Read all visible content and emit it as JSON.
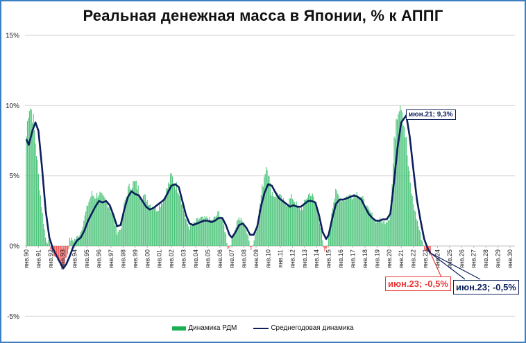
{
  "title": "Реальная денежная масса в Японии, % к АППГ",
  "colors": {
    "bar_positive": "#4cc47a",
    "bar_negative": "#f25a5a",
    "line": "#0d1f5c",
    "grid": "#d9d9d9",
    "frame": "#3a7fc4",
    "callout_red": "#e83a3a"
  },
  "legend": {
    "bars_label": "Динамика РДМ",
    "line_label": "Среднегодовая динамика"
  },
  "callouts": {
    "peak": "июн.21; 9,3%",
    "bar_last": "июн.23; -0,5%",
    "line_last": "июн.23; -0,5%"
  },
  "chart_data": {
    "type": "bar+line",
    "title": "Реальная денежная масса в Японии, % к АППГ",
    "xlabel": "",
    "ylabel": "",
    "ylim": [
      -5,
      15
    ],
    "yticks": [
      "15%",
      "10%",
      "5%",
      "0%",
      "-5%"
    ],
    "ytick_values": [
      15,
      10,
      5,
      0,
      -5
    ],
    "grid": true,
    "legend_position": "bottom",
    "categories": [
      "янв.90",
      "янв.91",
      "янв.92",
      "янв.93",
      "янв.94",
      "янв.95",
      "янв.96",
      "янв.97",
      "янв.98",
      "янв.99",
      "янв.00",
      "янв.01",
      "янв.02",
      "янв.03",
      "янв.04",
      "янв.05",
      "янв.06",
      "янв.07",
      "янв.08",
      "янв.09",
      "янв.10",
      "янв.11",
      "янв.12",
      "янв.13",
      "янв.14",
      "янв.15",
      "янв.16",
      "янв.17",
      "янв.18",
      "янв.19",
      "янв.20",
      "янв.21",
      "янв.22",
      "янв.23",
      "янв.24",
      "янв.25",
      "янв.26",
      "янв.27",
      "янв.28",
      "янв.29",
      "янв.30"
    ],
    "series": [
      {
        "name": "Динамика РДМ",
        "type": "bar",
        "frequency": "monthly (anchor points, decimal year → %)",
        "points": [
          [
            1990.0,
            7.8
          ],
          [
            1990.2,
            10.2
          ],
          [
            1990.5,
            9.5
          ],
          [
            1990.8,
            7.0
          ],
          [
            1991.0,
            5.0
          ],
          [
            1991.3,
            2.5
          ],
          [
            1991.6,
            0.5
          ],
          [
            1991.9,
            0.2
          ],
          [
            1992.1,
            -0.4
          ],
          [
            1992.4,
            -0.8
          ],
          [
            1992.7,
            -1.0
          ],
          [
            1992.9,
            -1.6
          ],
          [
            1993.1,
            -1.3
          ],
          [
            1993.4,
            -0.6
          ],
          [
            1993.6,
            0.5
          ],
          [
            1993.9,
            0.4
          ],
          [
            1994.2,
            0.6
          ],
          [
            1994.5,
            1.0
          ],
          [
            1994.8,
            2.0
          ],
          [
            1995.1,
            3.0
          ],
          [
            1995.4,
            3.7
          ],
          [
            1995.7,
            3.5
          ],
          [
            1996.0,
            3.8
          ],
          [
            1996.3,
            3.4
          ],
          [
            1996.6,
            3.2
          ],
          [
            1996.9,
            2.8
          ],
          [
            1997.2,
            2.0
          ],
          [
            1997.5,
            1.0
          ],
          [
            1997.8,
            1.2
          ],
          [
            1998.1,
            3.0
          ],
          [
            1998.4,
            4.0
          ],
          [
            1998.7,
            4.4
          ],
          [
            1999.0,
            4.5
          ],
          [
            1999.3,
            4.0
          ],
          [
            1999.6,
            3.6
          ],
          [
            1999.9,
            3.4
          ],
          [
            2000.2,
            3.0
          ],
          [
            2000.5,
            2.8
          ],
          [
            2000.8,
            2.6
          ],
          [
            2001.1,
            3.0
          ],
          [
            2001.4,
            3.5
          ],
          [
            2001.7,
            4.2
          ],
          [
            2002.0,
            5.0
          ],
          [
            2002.3,
            4.4
          ],
          [
            2002.6,
            4.0
          ],
          [
            2002.9,
            3.0
          ],
          [
            2003.2,
            1.8
          ],
          [
            2003.5,
            1.3
          ],
          [
            2003.8,
            1.5
          ],
          [
            2004.1,
            1.8
          ],
          [
            2004.4,
            2.0
          ],
          [
            2004.7,
            1.9
          ],
          [
            2005.0,
            2.0
          ],
          [
            2005.3,
            1.8
          ],
          [
            2005.6,
            2.0
          ],
          [
            2005.9,
            2.4
          ],
          [
            2006.2,
            2.0
          ],
          [
            2006.5,
            0.8
          ],
          [
            2006.7,
            -0.3
          ],
          [
            2006.9,
            0.2
          ],
          [
            2007.2,
            1.0
          ],
          [
            2007.5,
            2.0
          ],
          [
            2007.8,
            1.8
          ],
          [
            2008.1,
            1.4
          ],
          [
            2008.4,
            0.4
          ],
          [
            2008.6,
            -0.2
          ],
          [
            2008.8,
            0.3
          ],
          [
            2009.1,
            1.5
          ],
          [
            2009.4,
            3.5
          ],
          [
            2009.7,
            5.2
          ],
          [
            2009.9,
            6.0
          ],
          [
            2010.2,
            4.0
          ],
          [
            2010.5,
            3.6
          ],
          [
            2010.8,
            3.8
          ],
          [
            2011.1,
            3.3
          ],
          [
            2011.4,
            3.0
          ],
          [
            2011.7,
            3.2
          ],
          [
            2012.0,
            3.5
          ],
          [
            2012.3,
            3.0
          ],
          [
            2012.6,
            2.6
          ],
          [
            2012.9,
            2.8
          ],
          [
            2013.2,
            3.5
          ],
          [
            2013.5,
            3.8
          ],
          [
            2013.8,
            3.3
          ],
          [
            2014.1,
            2.5
          ],
          [
            2014.4,
            1.0
          ],
          [
            2014.6,
            -0.4
          ],
          [
            2014.8,
            -0.3
          ],
          [
            2015.0,
            0.6
          ],
          [
            2015.3,
            2.8
          ],
          [
            2015.6,
            3.8
          ],
          [
            2015.9,
            3.5
          ],
          [
            2016.2,
            3.3
          ],
          [
            2016.5,
            3.5
          ],
          [
            2016.8,
            3.6
          ],
          [
            2017.1,
            3.7
          ],
          [
            2017.4,
            3.8
          ],
          [
            2017.7,
            3.5
          ],
          [
            2018.0,
            3.0
          ],
          [
            2018.3,
            2.5
          ],
          [
            2018.6,
            2.2
          ],
          [
            2018.9,
            1.8
          ],
          [
            2019.2,
            1.9
          ],
          [
            2019.5,
            1.7
          ],
          [
            2019.8,
            1.8
          ],
          [
            2020.0,
            2.0
          ],
          [
            2020.2,
            3.5
          ],
          [
            2020.4,
            7.0
          ],
          [
            2020.6,
            9.5
          ],
          [
            2020.8,
            10.2
          ],
          [
            2021.0,
            10.4
          ],
          [
            2021.2,
            9.0
          ],
          [
            2021.4,
            7.5
          ],
          [
            2021.6,
            5.5
          ],
          [
            2021.8,
            4.0
          ],
          [
            2022.0,
            3.0
          ],
          [
            2022.2,
            2.2
          ],
          [
            2022.4,
            1.5
          ],
          [
            2022.6,
            0.8
          ],
          [
            2022.8,
            0.2
          ],
          [
            2023.0,
            -0.4
          ],
          [
            2023.2,
            -0.5
          ],
          [
            2023.42,
            -0.5
          ]
        ]
      },
      {
        "name": "Среднегодовая динамика",
        "type": "line",
        "points": [
          [
            1990.0,
            7.6
          ],
          [
            1990.2,
            7.2
          ],
          [
            1990.5,
            8.2
          ],
          [
            1990.75,
            8.8
          ],
          [
            1991.0,
            8.2
          ],
          [
            1991.3,
            5.5
          ],
          [
            1991.6,
            2.5
          ],
          [
            1991.9,
            0.6
          ],
          [
            1992.2,
            -0.2
          ],
          [
            1992.5,
            -0.7
          ],
          [
            1992.8,
            -1.2
          ],
          [
            1993.05,
            -1.6
          ],
          [
            1993.3,
            -1.3
          ],
          [
            1993.6,
            -0.7
          ],
          [
            1993.9,
            0.0
          ],
          [
            1994.2,
            0.4
          ],
          [
            1994.5,
            0.6
          ],
          [
            1994.8,
            1.1
          ],
          [
            1995.1,
            1.8
          ],
          [
            1995.4,
            2.3
          ],
          [
            1995.7,
            2.8
          ],
          [
            1996.0,
            3.2
          ],
          [
            1996.3,
            3.1
          ],
          [
            1996.6,
            3.2
          ],
          [
            1996.9,
            2.9
          ],
          [
            1997.2,
            2.2
          ],
          [
            1997.5,
            1.4
          ],
          [
            1997.8,
            1.5
          ],
          [
            1998.1,
            2.6
          ],
          [
            1998.4,
            3.5
          ],
          [
            1998.7,
            3.9
          ],
          [
            1999.0,
            3.7
          ],
          [
            1999.3,
            3.6
          ],
          [
            1999.6,
            3.2
          ],
          [
            1999.9,
            2.8
          ],
          [
            2000.2,
            2.6
          ],
          [
            2000.5,
            2.7
          ],
          [
            2000.8,
            2.9
          ],
          [
            2001.1,
            3.1
          ],
          [
            2001.4,
            3.3
          ],
          [
            2001.7,
            3.8
          ],
          [
            2002.0,
            4.3
          ],
          [
            2002.3,
            4.4
          ],
          [
            2002.6,
            4.2
          ],
          [
            2002.9,
            3.2
          ],
          [
            2003.2,
            2.2
          ],
          [
            2003.5,
            1.6
          ],
          [
            2003.8,
            1.5
          ],
          [
            2004.1,
            1.6
          ],
          [
            2004.4,
            1.7
          ],
          [
            2004.7,
            1.8
          ],
          [
            2005.0,
            1.8
          ],
          [
            2005.3,
            1.7
          ],
          [
            2005.6,
            1.8
          ],
          [
            2005.9,
            2.0
          ],
          [
            2006.2,
            2.0
          ],
          [
            2006.5,
            1.5
          ],
          [
            2006.8,
            0.8
          ],
          [
            2007.0,
            0.6
          ],
          [
            2007.3,
            1.0
          ],
          [
            2007.6,
            1.5
          ],
          [
            2007.9,
            1.6
          ],
          [
            2008.2,
            1.3
          ],
          [
            2008.5,
            0.8
          ],
          [
            2008.8,
            0.8
          ],
          [
            2009.1,
            1.4
          ],
          [
            2009.4,
            2.8
          ],
          [
            2009.7,
            3.8
          ],
          [
            2010.0,
            4.4
          ],
          [
            2010.3,
            4.3
          ],
          [
            2010.6,
            3.8
          ],
          [
            2010.9,
            3.4
          ],
          [
            2011.2,
            3.2
          ],
          [
            2011.5,
            3.0
          ],
          [
            2011.8,
            2.8
          ],
          [
            2012.1,
            2.9
          ],
          [
            2012.4,
            2.8
          ],
          [
            2012.7,
            2.8
          ],
          [
            2013.0,
            3.0
          ],
          [
            2013.3,
            3.2
          ],
          [
            2013.6,
            3.2
          ],
          [
            2013.9,
            3.1
          ],
          [
            2014.2,
            2.2
          ],
          [
            2014.5,
            1.0
          ],
          [
            2014.8,
            0.5
          ],
          [
            2015.0,
            0.8
          ],
          [
            2015.3,
            2.0
          ],
          [
            2015.6,
            3.0
          ],
          [
            2015.9,
            3.3
          ],
          [
            2016.2,
            3.3
          ],
          [
            2016.5,
            3.4
          ],
          [
            2016.8,
            3.5
          ],
          [
            2017.1,
            3.6
          ],
          [
            2017.4,
            3.5
          ],
          [
            2017.7,
            3.3
          ],
          [
            2018.0,
            2.8
          ],
          [
            2018.3,
            2.3
          ],
          [
            2018.6,
            2.0
          ],
          [
            2018.9,
            1.8
          ],
          [
            2019.2,
            1.8
          ],
          [
            2019.5,
            1.9
          ],
          [
            2019.8,
            1.9
          ],
          [
            2020.1,
            2.3
          ],
          [
            2020.4,
            4.5
          ],
          [
            2020.7,
            7.0
          ],
          [
            2021.0,
            8.8
          ],
          [
            2021.42,
            9.3
          ],
          [
            2021.7,
            7.8
          ],
          [
            2022.0,
            5.5
          ],
          [
            2022.3,
            3.3
          ],
          [
            2022.6,
            1.8
          ],
          [
            2022.9,
            0.5
          ],
          [
            2023.2,
            -0.2
          ],
          [
            2023.42,
            -0.5
          ]
        ]
      }
    ],
    "annotations": [
      {
        "label": "июн.21; 9,3%",
        "x": "июн.21",
        "y": 9.3,
        "series": "Среднегодовая динамика"
      },
      {
        "label": "июн.23; -0,5%",
        "x": "июн.23",
        "y": -0.5,
        "series": "Динамика РДМ"
      },
      {
        "label": "июн.23; -0,5%",
        "x": "июн.23",
        "y": -0.5,
        "series": "Среднегодовая динамика"
      }
    ]
  }
}
